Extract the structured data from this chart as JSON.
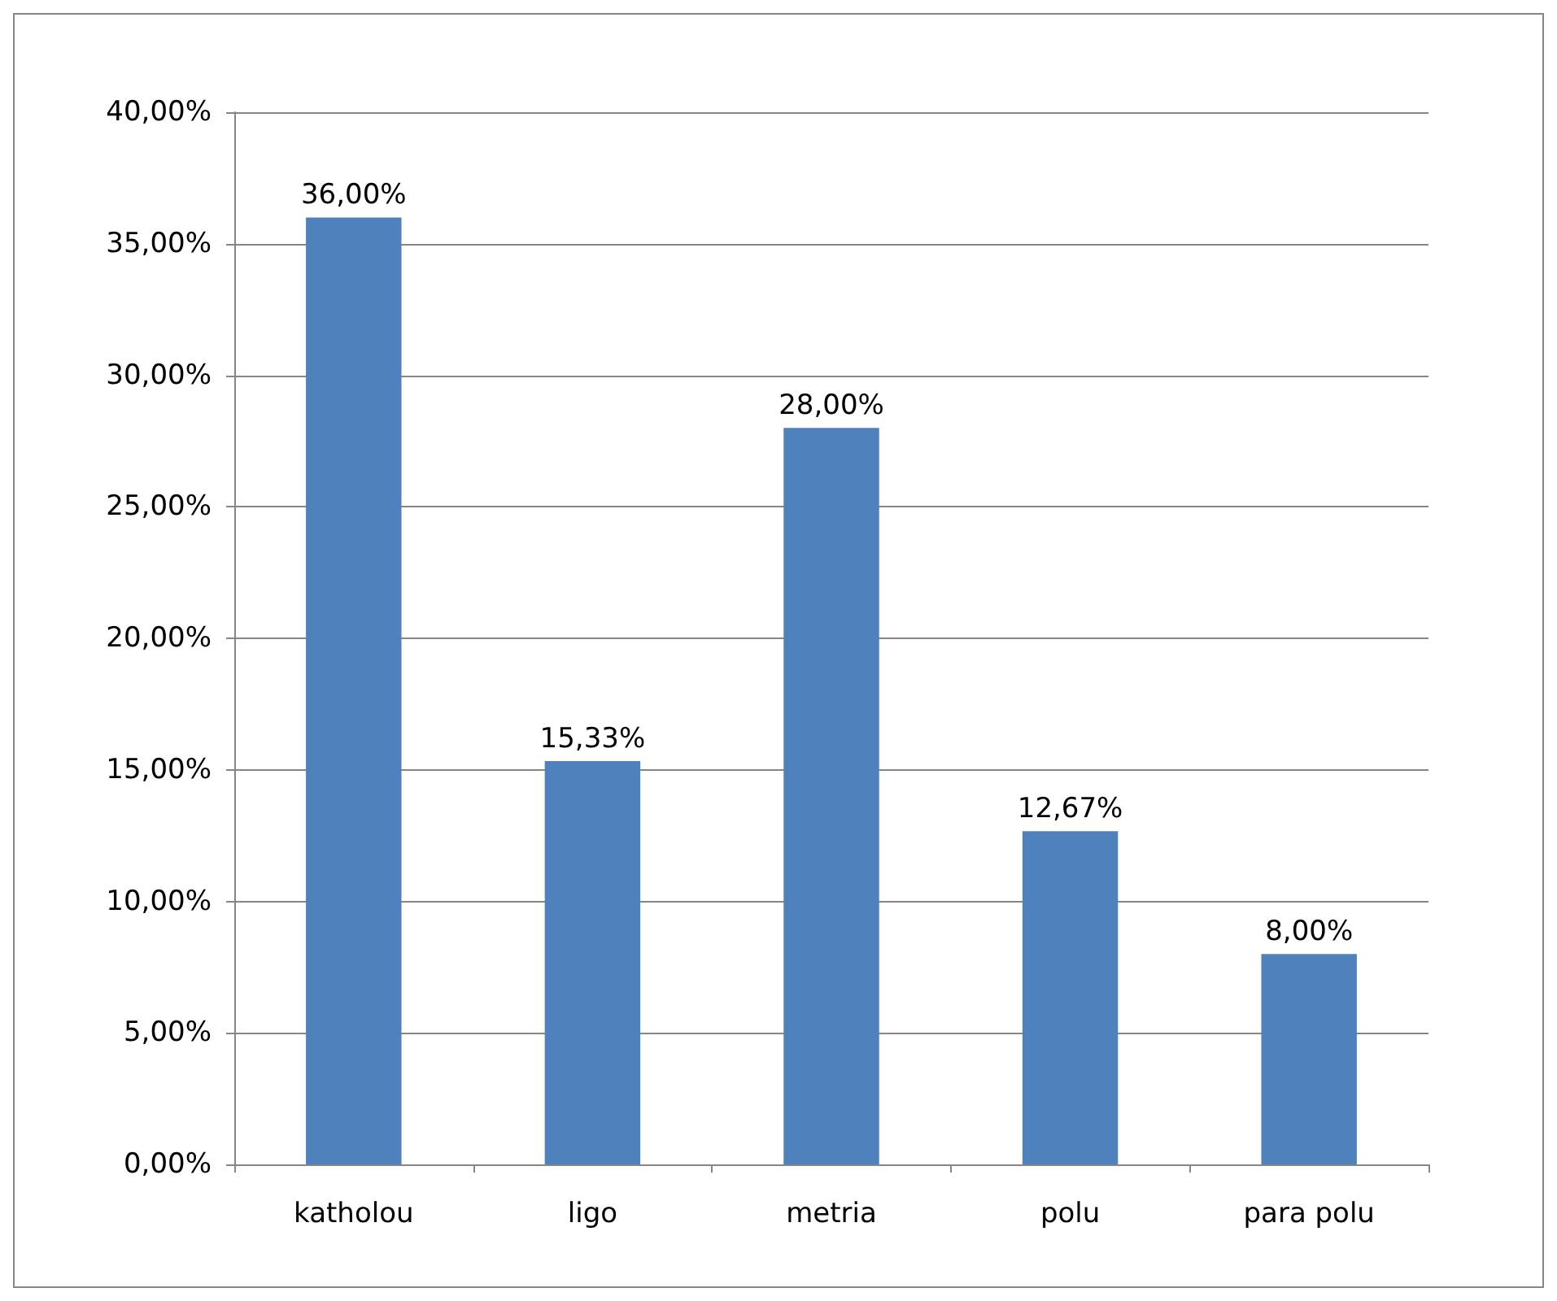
{
  "chart_data": {
    "type": "bar",
    "categories": [
      "katholou",
      "ligo",
      "metria",
      "polu",
      "para polu"
    ],
    "values": [
      36.0,
      15.33,
      28.0,
      12.67,
      8.0
    ],
    "value_labels": [
      "36,00%",
      "15,33%",
      "28,00%",
      "12,67%",
      "8,00%"
    ],
    "color": "#4f81bd",
    "ylim": [
      0,
      40
    ],
    "yticks": [
      {
        "value": 0,
        "label": "0,00%"
      },
      {
        "value": 5,
        "label": "5,00%"
      },
      {
        "value": 10,
        "label": "10,00%"
      },
      {
        "value": 15,
        "label": "15,00%"
      },
      {
        "value": 20,
        "label": "20,00%"
      },
      {
        "value": 25,
        "label": "25,00%"
      },
      {
        "value": 30,
        "label": "30,00%"
      },
      {
        "value": 35,
        "label": "35,00%"
      },
      {
        "value": 40,
        "label": "40,00%"
      }
    ],
    "grid": "y"
  }
}
